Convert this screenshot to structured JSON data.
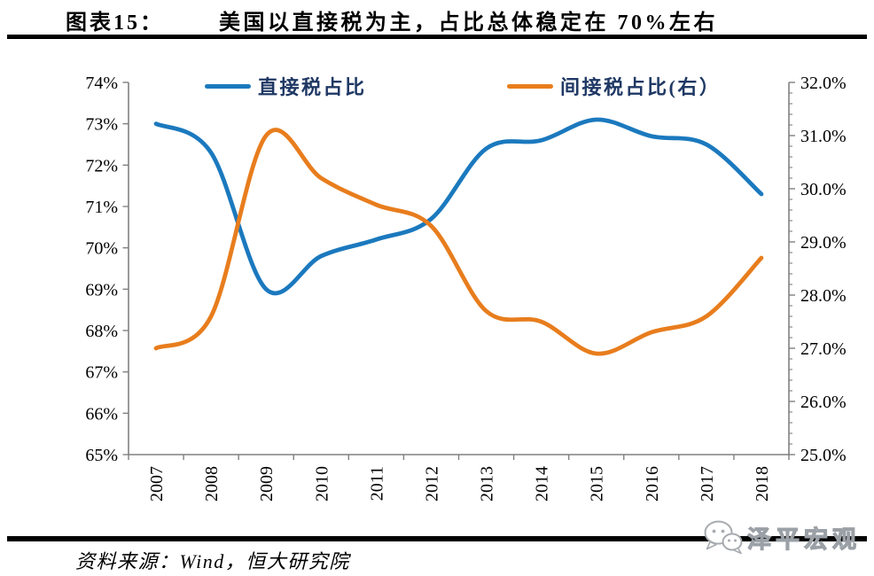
{
  "page": {
    "figure_label": "图表15：",
    "figure_title": "美国以直接税为主，占比总体稳定在 70%左右",
    "source_note": "资料来源：Wind，恒大研究院",
    "watermark_text": "泽平宏观"
  },
  "chart_data": {
    "type": "line",
    "smooth": true,
    "grid": false,
    "legend_position": "top",
    "categories": [
      "2007",
      "2008",
      "2009",
      "2010",
      "2011",
      "2012",
      "2013",
      "2014",
      "2015",
      "2016",
      "2017",
      "2018"
    ],
    "series": [
      {
        "key": "direct-tax",
        "name": "直接税占比",
        "axis": "left",
        "color": "#1B79BE",
        "values": [
          73.0,
          72.3,
          69.0,
          69.8,
          70.2,
          70.7,
          72.4,
          72.6,
          73.1,
          72.7,
          72.5,
          71.3
        ]
      },
      {
        "key": "indirect-tax",
        "name": "间接税占比(右）",
        "axis": "right",
        "color": "#E87D1D",
        "values": [
          27.0,
          27.6,
          31.0,
          30.2,
          29.7,
          29.3,
          27.7,
          27.5,
          26.9,
          27.3,
          27.6,
          28.7
        ]
      }
    ],
    "left_axis": {
      "min": 65,
      "max": 74,
      "unit": "%",
      "ticks": [
        "74%",
        "73%",
        "72%",
        "71%",
        "70%",
        "69%",
        "68%",
        "67%",
        "66%",
        "65%"
      ]
    },
    "right_axis": {
      "min": 25,
      "max": 32,
      "unit": "%",
      "minor_per_major": 5,
      "ticks": [
        "32.0%",
        "31.0%",
        "30.0%",
        "29.0%",
        "28.0%",
        "27.0%",
        "26.0%",
        "25.0%"
      ]
    },
    "axis_color": "#808080",
    "tick_label_color": "#000000"
  }
}
